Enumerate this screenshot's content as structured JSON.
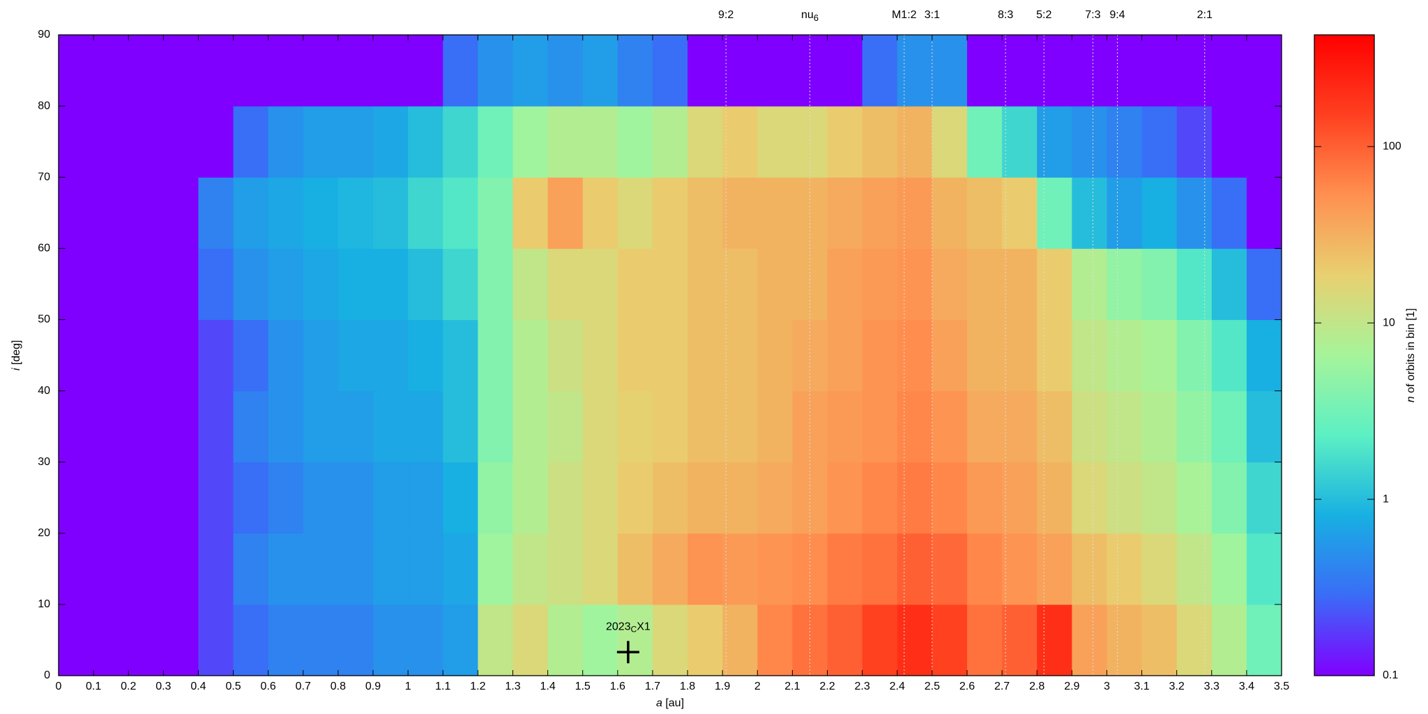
{
  "chart_data": {
    "type": "heatmap",
    "xlabel": {
      "symbol": "a",
      "unit": "[au]"
    },
    "ylabel": {
      "symbol": "i",
      "unit": "[deg]"
    },
    "colorbar_label": {
      "symbol": "n",
      "text": "of orbits in bin [1]"
    },
    "xlim": [
      0,
      3.5
    ],
    "ylim": [
      0,
      90
    ],
    "xticks": [
      0,
      0.1,
      0.2,
      0.3,
      0.4,
      0.5,
      0.6,
      0.7,
      0.8,
      0.9,
      1,
      1.1,
      1.2,
      1.3,
      1.4,
      1.5,
      1.6,
      1.7,
      1.8,
      1.9,
      2,
      2.1,
      2.2,
      2.3,
      2.4,
      2.5,
      2.6,
      2.7,
      2.8,
      2.9,
      3,
      3.1,
      3.2,
      3.3,
      3.4,
      3.5
    ],
    "yticks": [
      0,
      10,
      20,
      30,
      40,
      50,
      60,
      70,
      80,
      90
    ],
    "color_scale": "log",
    "clim": [
      0.1,
      430
    ],
    "cticks": [
      0.1,
      1,
      10,
      100
    ],
    "colormap": [
      "#8000ff",
      "#3a6cf7",
      "#18b0e2",
      "#5cf0c4",
      "#a6f49a",
      "#e8d070",
      "#ff9050",
      "#ff4020",
      "#ff0000"
    ],
    "x_bins": [
      0,
      0.1,
      0.2,
      0.3,
      0.4,
      0.5,
      0.6,
      0.7,
      0.8,
      0.9,
      1,
      1.1,
      1.2,
      1.3,
      1.4,
      1.5,
      1.6,
      1.7,
      1.8,
      1.9,
      2,
      2.1,
      2.2,
      2.3,
      2.4,
      2.5,
      2.6,
      2.7,
      2.8,
      2.9,
      3,
      3.1,
      3.2,
      3.3,
      3.4,
      3.5
    ],
    "y_bins": [
      0,
      10,
      20,
      30,
      40,
      50,
      60,
      70,
      80,
      90
    ],
    "z": [
      [
        0,
        0,
        0,
        0,
        0,
        0,
        0,
        0,
        0
      ],
      [
        0,
        0,
        0,
        0,
        0,
        0,
        0,
        0,
        0
      ],
      [
        0,
        0,
        0,
        0,
        0,
        0,
        0,
        0,
        0
      ],
      [
        0,
        0,
        0,
        0,
        0,
        0,
        0,
        0,
        0
      ],
      [
        0.2,
        0.2,
        0.2,
        0.2,
        0.2,
        0.3,
        0.4,
        0,
        0
      ],
      [
        0.3,
        0.4,
        0.3,
        0.4,
        0.3,
        0.5,
        0.6,
        0.3,
        0
      ],
      [
        0.4,
        0.5,
        0.4,
        0.5,
        0.5,
        0.6,
        0.7,
        0.5,
        0
      ],
      [
        0.4,
        0.5,
        0.5,
        0.6,
        0.6,
        0.7,
        0.8,
        0.6,
        0
      ],
      [
        0.4,
        0.5,
        0.5,
        0.6,
        0.7,
        0.8,
        0.9,
        0.6,
        0
      ],
      [
        0.5,
        0.6,
        0.6,
        0.7,
        0.7,
        0.8,
        1,
        0.7,
        0
      ],
      [
        0.5,
        0.6,
        0.6,
        0.7,
        0.8,
        1,
        1.5,
        1,
        0
      ],
      [
        0.6,
        0.7,
        0.8,
        1,
        1,
        1.5,
        2,
        1.5,
        0.3
      ],
      [
        10,
        6,
        5,
        4,
        4,
        4,
        4,
        3,
        0.5
      ],
      [
        15,
        10,
        8,
        8,
        8,
        10,
        20,
        6,
        0.6
      ],
      [
        8,
        12,
        12,
        10,
        12,
        15,
        40,
        8,
        0.5
      ],
      [
        6,
        15,
        15,
        15,
        15,
        15,
        20,
        8,
        0.6
      ],
      [
        8,
        25,
        20,
        18,
        20,
        20,
        15,
        6,
        0.4
      ],
      [
        15,
        35,
        25,
        20,
        20,
        20,
        20,
        8,
        0.3
      ],
      [
        20,
        50,
        30,
        25,
        25,
        25,
        25,
        15,
        0
      ],
      [
        30,
        45,
        30,
        25,
        25,
        25,
        30,
        20,
        0
      ],
      [
        60,
        50,
        35,
        30,
        30,
        30,
        30,
        15,
        0
      ],
      [
        80,
        55,
        40,
        40,
        35,
        30,
        30,
        15,
        0
      ],
      [
        100,
        70,
        50,
        45,
        40,
        40,
        35,
        20,
        0
      ],
      [
        150,
        80,
        60,
        50,
        50,
        45,
        40,
        25,
        0.3
      ],
      [
        200,
        100,
        70,
        60,
        55,
        50,
        45,
        30,
        0.5
      ],
      [
        150,
        90,
        60,
        50,
        40,
        35,
        30,
        15,
        0.5
      ],
      [
        80,
        60,
        45,
        35,
        30,
        30,
        25,
        3,
        0
      ],
      [
        100,
        50,
        40,
        35,
        30,
        30,
        20,
        1.5,
        0
      ],
      [
        200,
        40,
        30,
        25,
        20,
        20,
        3,
        0.6,
        0
      ],
      [
        40,
        25,
        15,
        12,
        10,
        8,
        1,
        0.5,
        0
      ],
      [
        30,
        20,
        12,
        10,
        8,
        5,
        0.6,
        0.4,
        0
      ],
      [
        25,
        15,
        10,
        8,
        7,
        4,
        0.8,
        0.3,
        0
      ],
      [
        15,
        10,
        7,
        5,
        4,
        2,
        0.5,
        0.2,
        0
      ],
      [
        8,
        6,
        4,
        3,
        2,
        1,
        0.3,
        0,
        0
      ],
      [
        3,
        2,
        1.5,
        1,
        0.8,
        0.3,
        0,
        0,
        0
      ]
    ],
    "resonances": [
      {
        "label": "9:2",
        "a": 1.91
      },
      {
        "label": "nu",
        "subscript": "6",
        "a": 2.15
      },
      {
        "label": "M1:2",
        "a": 2.42
      },
      {
        "label": "3:1",
        "a": 2.5
      },
      {
        "label": "8:3",
        "a": 2.71
      },
      {
        "label": "5:2",
        "a": 2.82
      },
      {
        "label": "7:3",
        "a": 2.96
      },
      {
        "label": "9:4",
        "a": 3.03
      },
      {
        "label": "2:1",
        "a": 3.28
      }
    ],
    "object": {
      "name": "2023",
      "subscript": "C",
      "suffix": "X1",
      "a": 1.63,
      "i": 3.3
    }
  }
}
